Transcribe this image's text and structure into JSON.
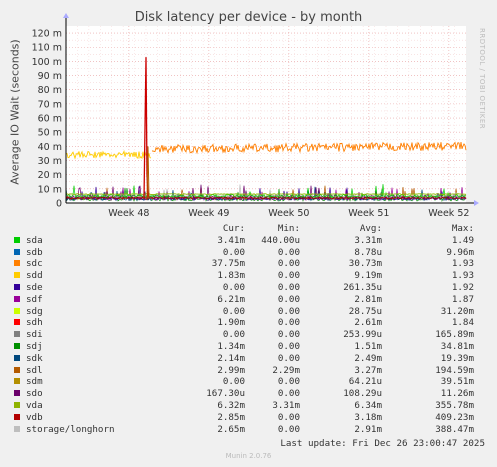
{
  "chart_data": {
    "type": "line",
    "title": "Disk latency per device - by month",
    "ylabel": "Average IO Wait (seconds)",
    "side_text": "RRDTOOL / TOBI OETIKER",
    "y_ticks": [
      "0",
      "10 m",
      "20 m",
      "30 m",
      "40 m",
      "50 m",
      "60 m",
      "70 m",
      "80 m",
      "90 m",
      "100 m",
      "110 m",
      "120 m"
    ],
    "y_tick_values": [
      0,
      10,
      20,
      30,
      40,
      50,
      60,
      70,
      80,
      90,
      100,
      110,
      120
    ],
    "ylim": [
      0,
      125
    ],
    "x_ticks": [
      "Week 48",
      "Week 49",
      "Week 50",
      "Week 51",
      "Week 52"
    ],
    "x_tick_positions_days": [
      5.5,
      12.5,
      19.5,
      26.5,
      33.5
    ],
    "xlim_days": [
      0,
      35
    ],
    "grid": true,
    "series_summary": [
      {
        "name": "sdc",
        "color": "#ff7f00",
        "level_ms": 38,
        "start_day": 7.5,
        "spike_ms": 46
      },
      {
        "name": "sdd",
        "color": "#ffcc00",
        "level_ms": 34,
        "start_day": 0,
        "end_day": 7.5
      },
      {
        "name": "sdh",
        "color": "#cc0000",
        "spike_day": 7,
        "spike_ms": 103
      },
      {
        "name": "vda",
        "color": "#8fb800",
        "level_ms": 6.3
      },
      {
        "name": "vdb",
        "color": "#a00000",
        "level_ms": 3
      }
    ]
  },
  "legend": {
    "headers": {
      "cur": "Cur:",
      "min": "Min:",
      "avg": "Avg:",
      "max": "Max:"
    },
    "rows": [
      {
        "name": "sda",
        "color": "#00cc00",
        "cur": "3.41m",
        "min": "440.00u",
        "avg": "3.31m",
        "max": "1.49"
      },
      {
        "name": "sdb",
        "color": "#0066b3",
        "cur": "0.00",
        "min": "0.00",
        "avg": "8.78u",
        "max": "9.96m"
      },
      {
        "name": "sdc",
        "color": "#ff8000",
        "cur": "37.75m",
        "min": "0.00",
        "avg": "30.73m",
        "max": "1.93"
      },
      {
        "name": "sdd",
        "color": "#ffcc00",
        "cur": "1.83m",
        "min": "0.00",
        "avg": "9.19m",
        "max": "1.93"
      },
      {
        "name": "sde",
        "color": "#330099",
        "cur": "0.00",
        "min": "0.00",
        "avg": "261.35u",
        "max": "1.92"
      },
      {
        "name": "sdf",
        "color": "#990099",
        "cur": "6.21m",
        "min": "0.00",
        "avg": "2.81m",
        "max": "1.87"
      },
      {
        "name": "sdg",
        "color": "#ccff00",
        "cur": "0.00",
        "min": "0.00",
        "avg": "28.75u",
        "max": "31.20m"
      },
      {
        "name": "sdh",
        "color": "#ff0000",
        "cur": "1.90m",
        "min": "0.00",
        "avg": "2.61m",
        "max": "1.84"
      },
      {
        "name": "sdi",
        "color": "#808080",
        "cur": "0.00",
        "min": "0.00",
        "avg": "253.99u",
        "max": "165.89m"
      },
      {
        "name": "sdj",
        "color": "#008f00",
        "cur": "1.34m",
        "min": "0.00",
        "avg": "1.51m",
        "max": "34.81m"
      },
      {
        "name": "sdk",
        "color": "#00487d",
        "cur": "2.14m",
        "min": "0.00",
        "avg": "2.49m",
        "max": "19.39m"
      },
      {
        "name": "sdl",
        "color": "#b35a00",
        "cur": "2.99m",
        "min": "2.29m",
        "avg": "3.27m",
        "max": "194.59m"
      },
      {
        "name": "sdm",
        "color": "#b38f00",
        "cur": "0.00",
        "min": "0.00",
        "avg": "64.21u",
        "max": "39.51m"
      },
      {
        "name": "sdo",
        "color": "#6b006b",
        "cur": "167.30u",
        "min": "0.00",
        "avg": "108.29u",
        "max": "11.26m"
      },
      {
        "name": "vda",
        "color": "#8fb300",
        "cur": "6.32m",
        "min": "3.31m",
        "avg": "6.34m",
        "max": "355.78m"
      },
      {
        "name": "vdb",
        "color": "#b30000",
        "cur": "2.85m",
        "min": "0.00",
        "avg": "3.18m",
        "max": "409.23m"
      },
      {
        "name": "storage/longhorn",
        "color": "#bebebe",
        "cur": "2.65m",
        "min": "0.00",
        "avg": "2.91m",
        "max": "388.47m"
      }
    ]
  },
  "last_update": "Last update: Fri Dec 26 23:00:47 2025",
  "footer": "Munin 2.0.76"
}
